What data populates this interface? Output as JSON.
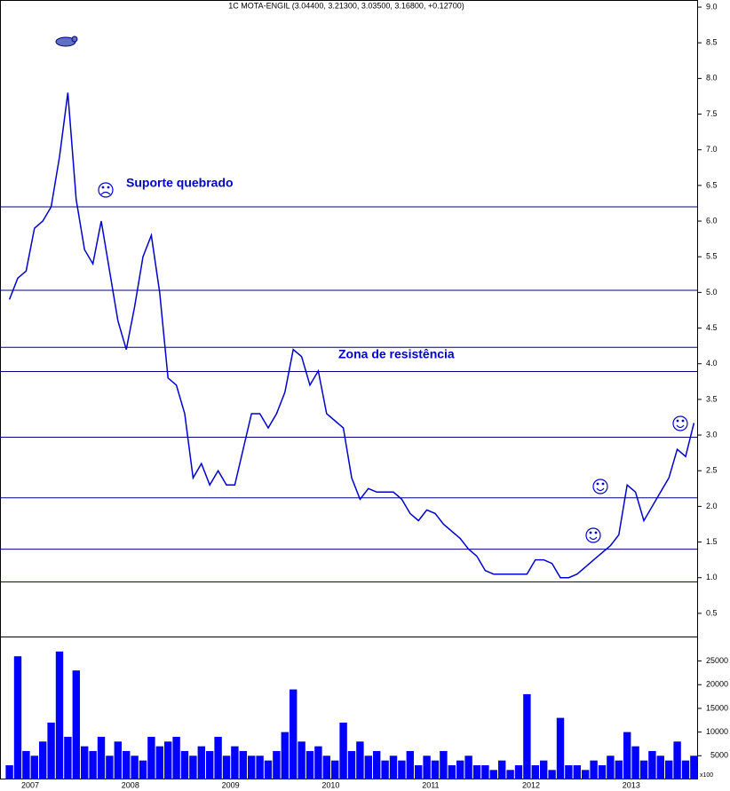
{
  "chart_data": {
    "type": "line",
    "title": "1C MOTA-ENGIL (3.04400, 3.21300, 3.03500, 3.16800, +0.12700)",
    "categories": [
      null,
      "2007",
      null,
      null,
      null,
      null,
      null,
      null,
      null,
      null,
      null,
      null,
      null,
      "2008",
      null,
      null,
      null,
      null,
      null,
      null,
      null,
      null,
      null,
      null,
      null,
      "2009",
      null,
      null,
      null,
      null,
      null,
      null,
      null,
      null,
      null,
      null,
      null,
      "2010",
      null,
      null,
      null,
      null,
      null,
      null,
      null,
      null,
      null,
      null,
      null,
      "2011",
      null,
      null,
      null,
      null,
      null,
      null,
      null,
      null,
      null,
      null,
      null,
      "2012",
      null,
      null,
      null,
      null,
      null,
      null,
      null,
      null,
      null,
      null,
      null,
      "2013",
      null,
      null,
      null,
      null,
      null,
      null,
      null,
      null,
      null
    ],
    "series": [
      {
        "type": "line",
        "color": "#0000cc",
        "values": [
          4.9,
          5.2,
          5.3,
          5.9,
          6.0,
          6.2,
          6.9,
          7.8,
          6.3,
          5.6,
          5.4,
          6.0,
          5.3,
          4.6,
          4.2,
          4.8,
          5.5,
          5.8,
          5.0,
          3.8,
          3.7,
          3.3,
          2.4,
          2.6,
          2.3,
          2.5,
          2.3,
          2.3,
          2.8,
          3.3,
          3.3,
          3.1,
          3.3,
          3.6,
          4.2,
          4.1,
          3.7,
          3.9,
          3.3,
          3.2,
          3.1,
          2.4,
          2.1,
          2.25,
          2.2,
          2.2,
          2.2,
          2.1,
          1.9,
          1.8,
          1.95,
          1.9,
          1.75,
          1.65,
          1.55,
          1.4,
          1.3,
          1.1,
          1.05,
          1.05,
          1.05,
          1.05,
          1.05,
          1.25,
          1.25,
          1.2,
          1.0,
          1.0,
          1.05,
          1.15,
          1.25,
          1.35,
          1.45,
          1.6,
          2.3,
          2.2,
          1.8,
          2.0,
          2.2,
          2.4,
          2.8,
          2.7,
          3.17
        ]
      },
      {
        "type": "bar",
        "axis": "y2",
        "color": "#0000ff",
        "values": [
          3000,
          26000,
          6000,
          5000,
          8000,
          12000,
          27000,
          9000,
          23000,
          7000,
          6000,
          9000,
          5000,
          8000,
          6000,
          5000,
          4000,
          9000,
          7000,
          8000,
          9000,
          6000,
          5000,
          7000,
          6000,
          9000,
          5000,
          7000,
          6000,
          5000,
          5000,
          4000,
          6000,
          10000,
          19000,
          8000,
          6000,
          7000,
          5000,
          4000,
          12000,
          6000,
          8000,
          5000,
          6000,
          4000,
          5000,
          4000,
          6000,
          3000,
          5000,
          4000,
          6000,
          3000,
          4000,
          5000,
          3000,
          3000,
          2000,
          4000,
          2000,
          3000,
          18000,
          3000,
          4000,
          2000,
          13000,
          3000,
          3000,
          2000,
          4000,
          3000,
          5000,
          4000,
          10000,
          7000,
          4000,
          6000,
          5000,
          4000,
          8000,
          4000,
          5000
        ]
      }
    ],
    "ylim": [
      0.2,
      9.1
    ],
    "yticks": [
      0.5,
      {
        "value": 1,
        "label": "1.0"
      },
      1.5,
      {
        "value": 2,
        "label": "2.0"
      },
      2.5,
      {
        "value": 3,
        "label": "3.0"
      },
      3.5,
      {
        "value": 4,
        "label": "4.0"
      },
      4.5,
      {
        "value": 5,
        "label": "5.0"
      },
      5.5,
      {
        "value": 6,
        "label": "6.0"
      },
      6.5,
      {
        "value": 7,
        "label": "7.0"
      },
      7.5,
      {
        "value": 8,
        "label": "8.0"
      },
      8.5,
      {
        "value": 9,
        "label": "9.0"
      }
    ],
    "y2lim": [
      0,
      29600
    ],
    "y2ticks": [
      5000,
      10000,
      15000,
      20000,
      25000
    ],
    "y2label": "x100",
    "levels": {
      "color": "#000080",
      "values": [
        6.2,
        5.03,
        4.23,
        3.89,
        2.97,
        2.12,
        1.4,
        0.94
      ]
    },
    "annotations": [
      "Suporte quebrado",
      "Zona de resistência"
    ]
  }
}
